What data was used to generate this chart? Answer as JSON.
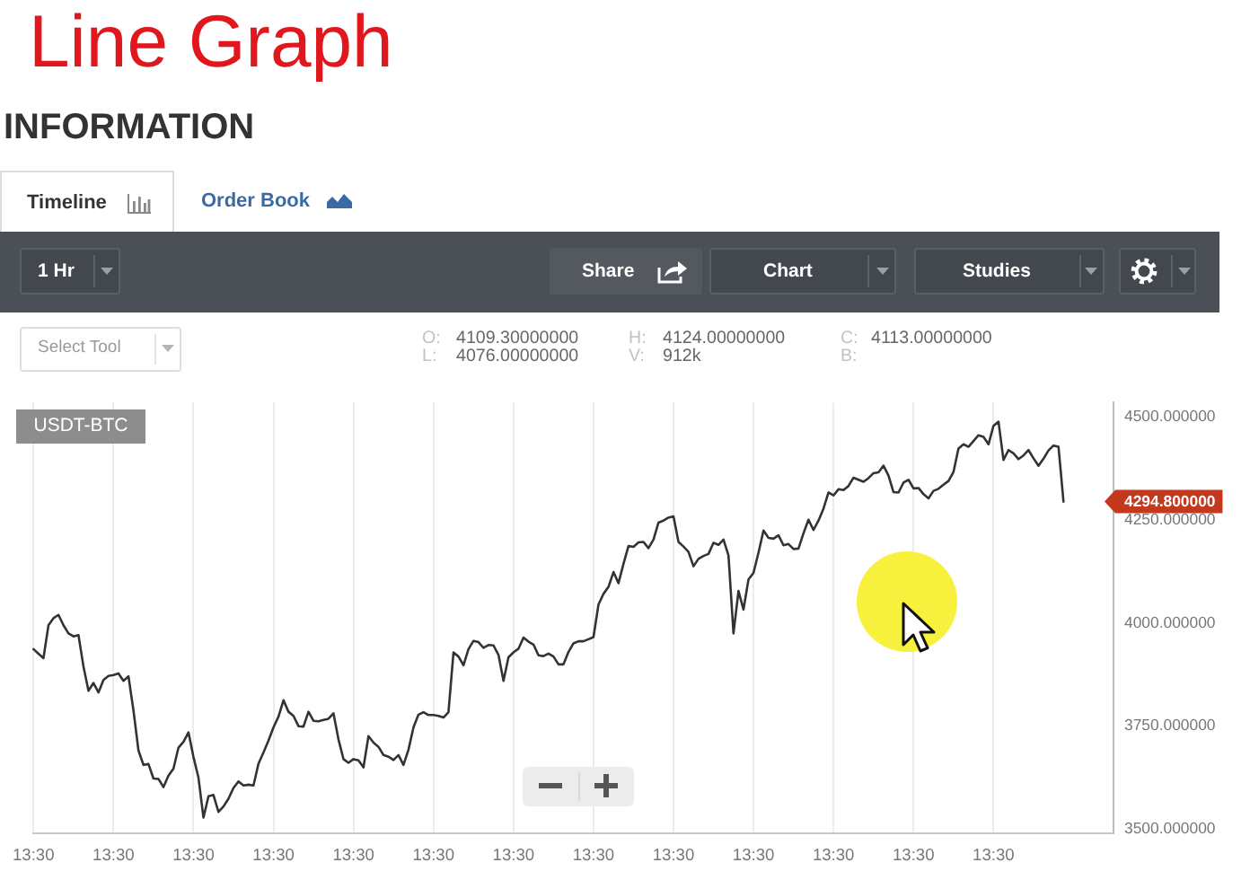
{
  "chart_data": {
    "type": "line",
    "title": "Line Graph",
    "subtitle": "INFORMATION",
    "annotations": [
      "Timeline",
      "Order Book",
      "1 Hr",
      "Share",
      "Chart",
      "Studies",
      "Select Tool",
      "O:",
      "4109.30000000",
      "L:",
      "4076.00000000",
      "H:",
      "4124.00000000",
      "V:",
      "912k",
      "C:",
      "4113.00000000",
      "B:",
      "USDT-BTC",
      "4294.800000"
    ],
    "categories": [
      "13:30",
      null,
      null,
      null,
      null,
      null,
      null,
      null,
      null,
      null,
      null,
      null,
      null,
      null,
      null,
      null,
      "13:30",
      null,
      null,
      null,
      null,
      null,
      null,
      null,
      null,
      null,
      null,
      null,
      null,
      null,
      null,
      null,
      "13:30",
      null,
      null,
      null,
      null,
      null,
      null,
      null,
      null,
      null,
      null,
      null,
      null,
      null,
      null,
      null,
      "13:30",
      null,
      null,
      null,
      null,
      null,
      null,
      null,
      null,
      null,
      null,
      null,
      null,
      null,
      null,
      null,
      "13:30",
      null,
      null,
      null,
      null,
      null,
      null,
      null,
      null,
      null,
      null,
      null,
      null,
      null,
      null,
      null,
      "13:30",
      null,
      null,
      null,
      null,
      null,
      null,
      null,
      null,
      null,
      null,
      null,
      null,
      null,
      null,
      null,
      "13:30",
      null,
      null,
      null,
      null,
      null,
      null,
      null,
      null,
      null,
      null,
      null,
      null,
      null,
      null,
      null,
      "13:30",
      null,
      null,
      null,
      null,
      null,
      null,
      null,
      null,
      null,
      null,
      null,
      null,
      null,
      null,
      null,
      "13:30",
      null,
      null,
      null,
      null,
      null,
      null,
      null,
      null,
      null,
      null,
      null,
      null,
      null,
      null,
      null,
      "13:30",
      null,
      null,
      null,
      null,
      null,
      null,
      null,
      null,
      null,
      null,
      null,
      null,
      null,
      null,
      null,
      "13:30",
      null,
      null,
      null,
      null,
      null,
      null,
      null,
      null,
      null,
      null,
      null,
      null,
      null,
      null,
      null,
      "13:30",
      null,
      null,
      null,
      null,
      null,
      null,
      null,
      null,
      null,
      null,
      null,
      null,
      null,
      null,
      null,
      "13:30",
      null,
      null,
      null,
      null,
      null,
      null,
      null,
      null,
      null,
      null,
      null,
      null,
      null,
      null,
      null,
      null,
      null,
      null,
      null,
      null,
      null,
      null,
      null,
      null
    ],
    "series": [
      {
        "color": "#333333",
        "values": [
          3937,
          3926,
          3915,
          3995,
          4012,
          4020,
          3995,
          3975,
          3968,
          3971,
          3895,
          3836,
          3855,
          3832,
          3862,
          3872,
          3874,
          3878,
          3860,
          3871,
          3788,
          3691,
          3656,
          3658,
          3623,
          3622,
          3602,
          3630,
          3647,
          3698,
          3712,
          3735,
          3675,
          3625,
          3528,
          3580,
          3583,
          3542,
          3555,
          3574,
          3600,
          3616,
          3606,
          3608,
          3606,
          3659,
          3686,
          3715,
          3747,
          3773,
          3813,
          3785,
          3775,
          3750,
          3749,
          3785,
          3763,
          3762,
          3765,
          3768,
          3781,
          3718,
          3670,
          3661,
          3670,
          3667,
          3650,
          3726,
          3710,
          3700,
          3680,
          3676,
          3668,
          3680,
          3656,
          3693,
          3747,
          3778,
          3784,
          3777,
          3777,
          3775,
          3771,
          3784,
          3929,
          3919,
          3898,
          3937,
          3957,
          3954,
          3940,
          3947,
          3946,
          3923,
          3860,
          3917,
          3929,
          3938,
          3965,
          3955,
          3948,
          3922,
          3920,
          3926,
          3919,
          3900,
          3900,
          3930,
          3951,
          3956,
          3956,
          3961,
          3966,
          4045,
          4071,
          4088,
          4124,
          4097,
          4144,
          4187,
          4185,
          4196,
          4197,
          4182,
          4203,
          4244,
          4249,
          4256,
          4259,
          4197,
          4186,
          4173,
          4138,
          4156,
          4163,
          4168,
          4195,
          4190,
          4203,
          4164,
          3975,
          4078,
          4033,
          4106,
          4122,
          4171,
          4225,
          4207,
          4205,
          4213,
          4189,
          4192,
          4180,
          4181,
          4218,
          4251,
          4226,
          4249,
          4278,
          4317,
          4310,
          4325,
          4323,
          4333,
          4353,
          4348,
          4343,
          4352,
          4364,
          4366,
          4382,
          4358,
          4318,
          4317,
          4341,
          4348,
          4327,
          4328,
          4313,
          4303,
          4321,
          4326,
          4336,
          4345,
          4367,
          4424,
          4434,
          4428,
          4442,
          4456,
          4452,
          4434,
          4479,
          4489,
          4396,
          4420,
          4412,
          4398,
          4407,
          4420,
          4400,
          4382,
          4399,
          4419,
          4431,
          4428,
          4295,
          null,
          null,
          null,
          null,
          null,
          null,
          null,
          null,
          null,
          null
        ]
      }
    ],
    "ylim": [
      3490,
      4535
    ],
    "yticks": [
      {
        "value": 3500,
        "label": "3500.000000"
      },
      {
        "value": 3750,
        "label": "3750.000000"
      },
      {
        "value": 4000,
        "label": "4000.000000"
      },
      {
        "value": 4250,
        "label": "4250.000000"
      },
      {
        "value": 4500,
        "label": "4500.000000"
      }
    ],
    "grid": "x"
  }
}
